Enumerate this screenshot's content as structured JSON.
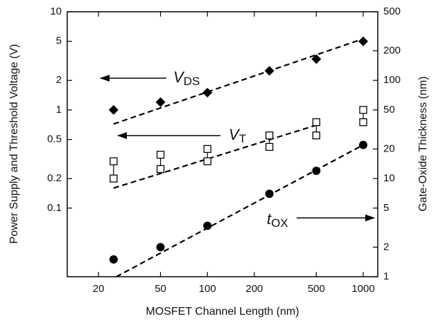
{
  "chart_data": {
    "type": "scatter",
    "x_label": "MOSFET Channel Length (nm)",
    "y_label": "Power Supply and Threshold Voltage (V)",
    "y2_label": "Gate-Oxide Thickness (nm)",
    "xscale": "log",
    "yscale": "log",
    "y2scale": "log",
    "xlim": [
      12.6,
      1240
    ],
    "ylim": [
      0.02,
      10
    ],
    "y2lim": [
      1,
      500
    ],
    "xticks": [
      20,
      50,
      100,
      200,
      500,
      1000
    ],
    "yticks": [
      0.1,
      0.2,
      0.5,
      1,
      2,
      5,
      10
    ],
    "y2ticks": [
      1,
      2,
      5,
      10,
      20,
      50,
      100,
      200,
      500
    ],
    "series": [
      {
        "marker": "diamond",
        "color": "#000000",
        "x": [
          25,
          50,
          100,
          250,
          500,
          1000
        ],
        "values": [
          1,
          1.2,
          1.5,
          2.5,
          3.3,
          5
        ]
      },
      {
        "marker": "square-open",
        "color": "#000000",
        "x": [
          25,
          50,
          100,
          250,
          500,
          1000
        ],
        "values": [
          0.3,
          0.35,
          0.4,
          0.55,
          0.75,
          1.0
        ]
      },
      {
        "marker": "square-open",
        "color": "#000000",
        "x": [
          25,
          50,
          100,
          250,
          500,
          1000
        ],
        "values": [
          0.2,
          0.25,
          0.3,
          0.42,
          0.55,
          0.75
        ]
      },
      {
        "marker": "circle",
        "color": "#000000",
        "axis": "y2",
        "x": [
          25,
          50,
          100,
          250,
          500,
          1000
        ],
        "values": [
          1.5,
          2,
          3.3,
          7,
          12,
          22
        ]
      }
    ],
    "fits": [
      {
        "style": "dashed",
        "x": [
          25,
          1000
        ],
        "values": [
          0.72,
          5.3
        ]
      },
      {
        "style": "dashed",
        "x": [
          25,
          500
        ],
        "values": [
          0.16,
          0.7
        ]
      },
      {
        "style": "dashed",
        "axis": "y2",
        "x": [
          26,
          1000
        ],
        "values": [
          1,
          22
        ]
      }
    ],
    "annotations": [
      {
        "text": "V",
        "subscript": "DS"
      },
      {
        "text": "V",
        "subscript": "T"
      },
      {
        "text": "t",
        "subscript": "OX"
      }
    ]
  }
}
